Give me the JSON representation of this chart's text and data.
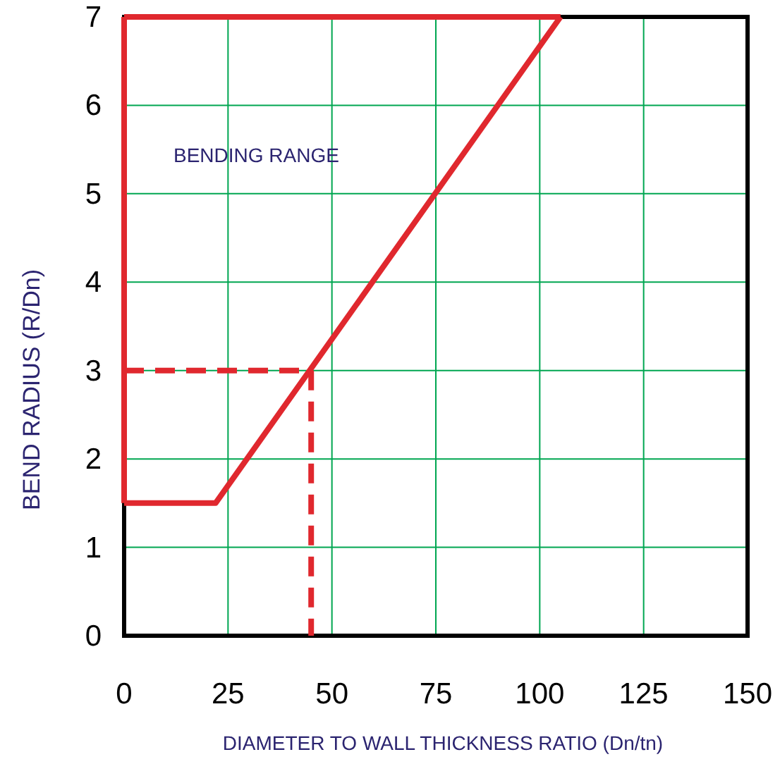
{
  "chart_data": {
    "type": "line",
    "xlabel": "DIAMETER TO WALL THICKNESS RATIO (Dn/tn)",
    "ylabel": "BEND RADIUS (R/Dn)",
    "annotations": [
      "BENDING RANGE"
    ],
    "xlim": [
      0,
      150
    ],
    "ylim": [
      0,
      7
    ],
    "xticks": [
      0,
      25,
      50,
      75,
      100,
      125,
      150
    ],
    "yticks": [
      0,
      1,
      2,
      3,
      4,
      5,
      6,
      7
    ],
    "grid": true,
    "marker": "none",
    "series": [
      {
        "color": "#e0282e",
        "x": [
          0,
          22,
          105
        ],
        "values": [
          1.5,
          1.5,
          7
        ],
        "line_style": "solid"
      },
      {
        "color": "#e0282e",
        "x": [
          0,
          105
        ],
        "values": [
          7,
          7
        ],
        "line_style": "solid"
      },
      {
        "color": "#e0282e",
        "x": [
          0,
          0
        ],
        "values": [
          1.5,
          7
        ],
        "line_style": "solid"
      },
      {
        "color": "#e0282e",
        "x": [
          0,
          45
        ],
        "values": [
          3,
          3
        ],
        "line_style": "dashed"
      },
      {
        "color": "#e0282e",
        "x": [
          45,
          45
        ],
        "values": [
          3,
          0
        ],
        "line_style": "dashed"
      }
    ]
  }
}
